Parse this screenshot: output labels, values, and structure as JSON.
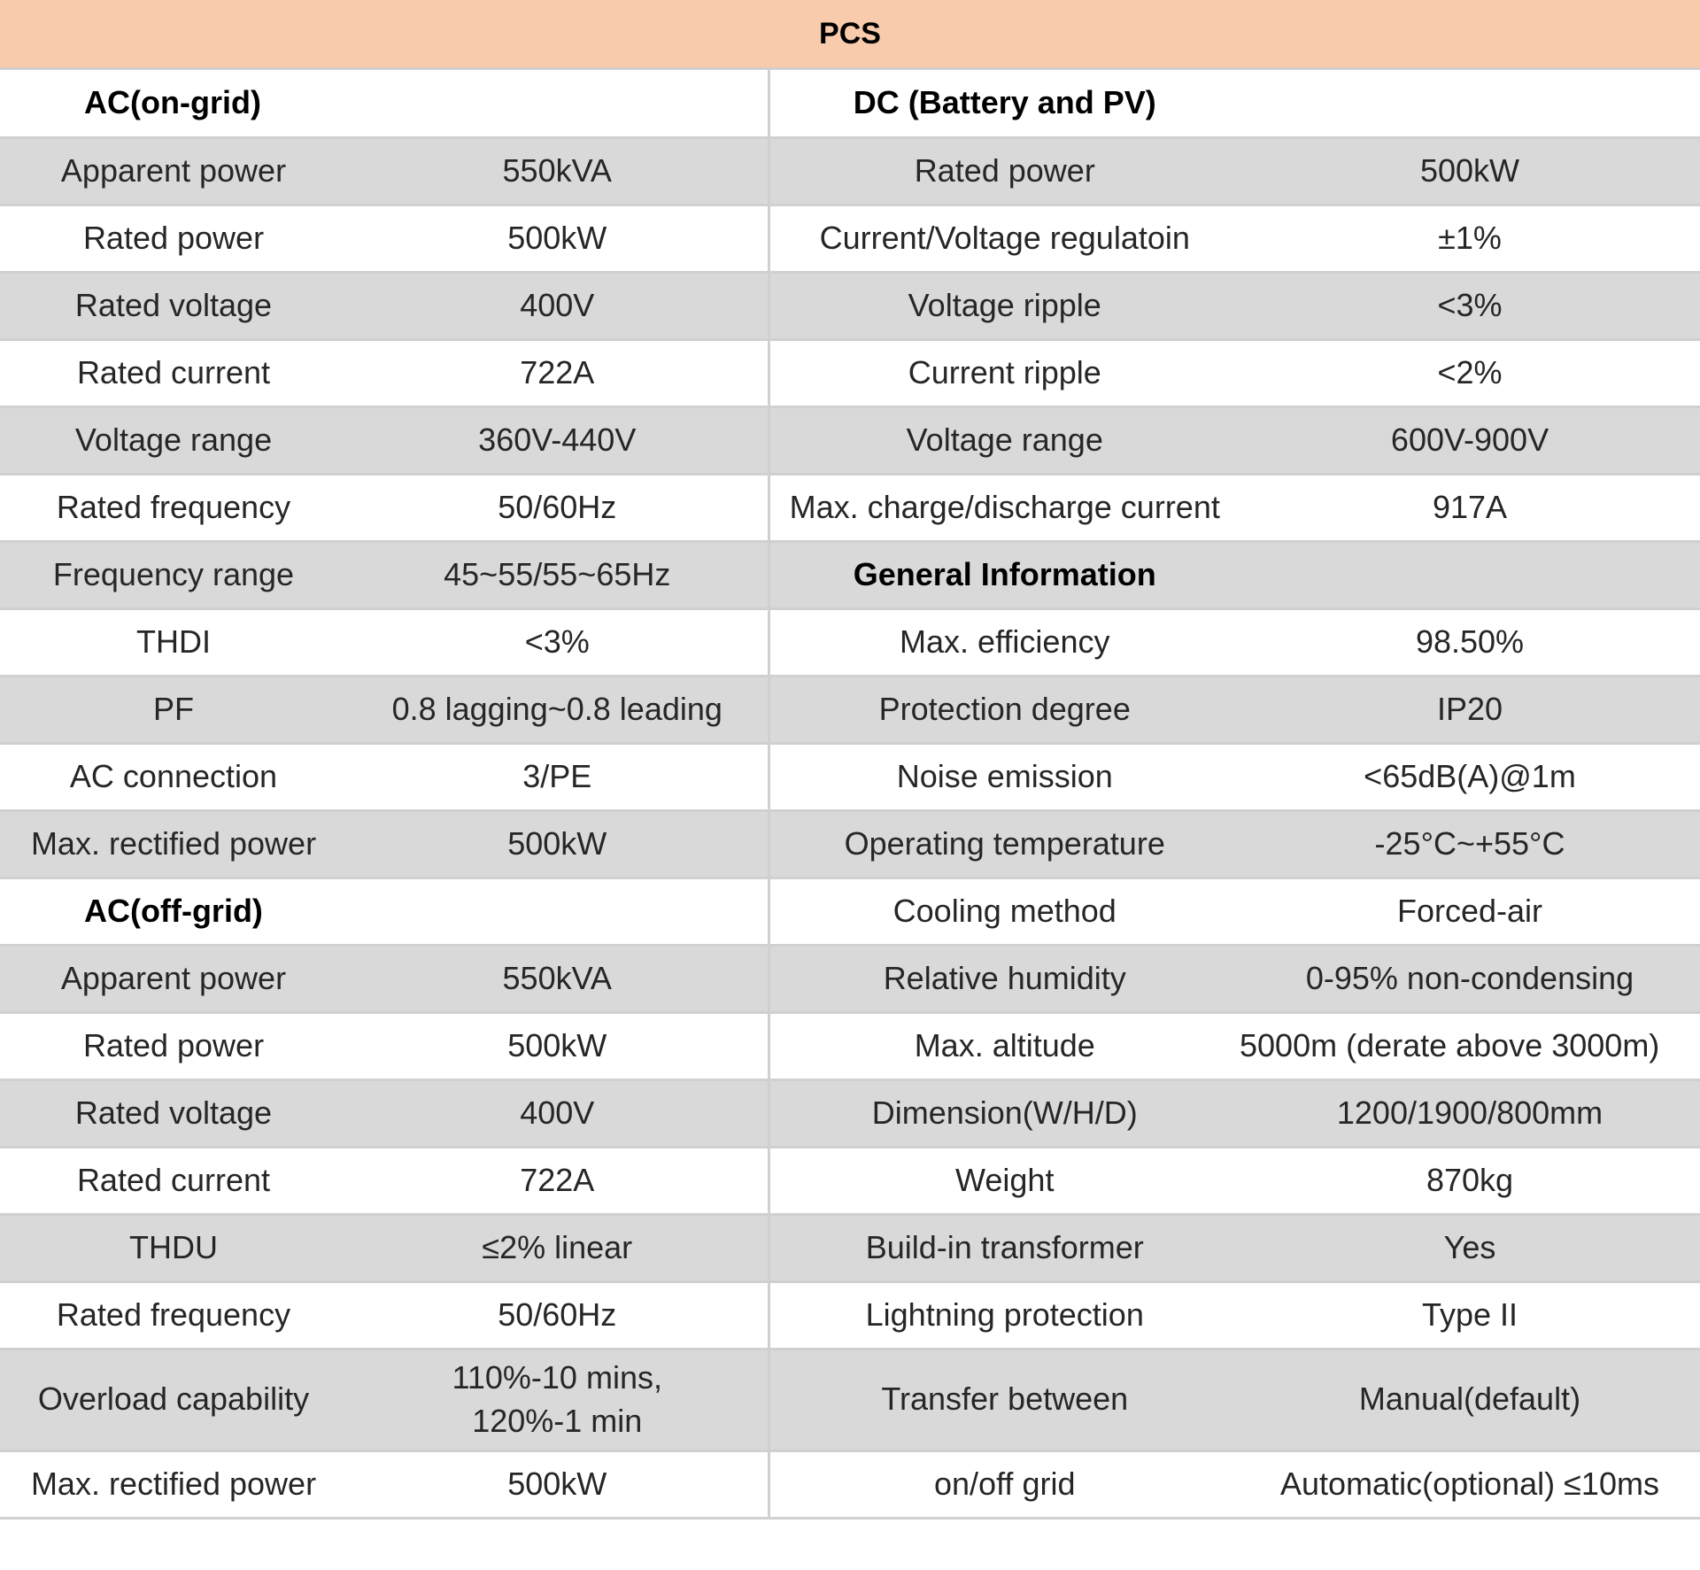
{
  "title": "PCS",
  "left": {
    "on_grid_heading": "AC(on-grid)",
    "on_grid_rows": [
      {
        "label": "Apparent power",
        "value": "550kVA"
      },
      {
        "label": "Rated power",
        "value": "500kW"
      },
      {
        "label": "Rated voltage",
        "value": "400V"
      },
      {
        "label": "Rated current",
        "value": "722A"
      },
      {
        "label": "Voltage range",
        "value": "360V-440V"
      },
      {
        "label": "Rated frequency",
        "value": "50/60Hz"
      },
      {
        "label": "Frequency range",
        "value": "45~55/55~65Hz"
      },
      {
        "label": "THDI",
        "value": "<3%"
      },
      {
        "label": "PF",
        "value": "0.8 lagging~0.8 leading"
      },
      {
        "label": "AC connection",
        "value": "3/PE"
      },
      {
        "label": "Max. rectified power",
        "value": "500kW"
      }
    ],
    "off_grid_heading": "AC(off-grid)",
    "off_grid_rows": [
      {
        "label": "Apparent power",
        "value": "550kVA"
      },
      {
        "label": "Rated power",
        "value": "500kW"
      },
      {
        "label": "Rated voltage",
        "value": "400V"
      },
      {
        "label": "Rated current",
        "value": "722A"
      },
      {
        "label": "THDU",
        "value": "≤2% linear"
      },
      {
        "label": "Rated frequency",
        "value": "50/60Hz"
      },
      {
        "label": "Overload capability",
        "value_line1": "110%-10 mins,",
        "value_line2": "120%-1 min"
      },
      {
        "label": "Max. rectified power",
        "value": "500kW"
      }
    ]
  },
  "right": {
    "dc_heading": "DC (Battery and PV)",
    "dc_rows": [
      {
        "label": "Rated power",
        "value": "500kW"
      },
      {
        "label": "Current/Voltage regulatoin",
        "value": "±1%"
      },
      {
        "label": "Voltage ripple",
        "value": "<3%"
      },
      {
        "label": "Current ripple",
        "value": "<2%"
      },
      {
        "label": "Voltage range",
        "value": "600V-900V"
      },
      {
        "label": "Max. charge/discharge current",
        "value": "917A"
      }
    ],
    "general_heading": "General Information",
    "general_rows": [
      {
        "label": "Max. efficiency",
        "value": "98.50%"
      },
      {
        "label": "Protection degree",
        "value": "IP20"
      },
      {
        "label": "Noise emission",
        "value": "<65dB(A)@1m"
      },
      {
        "label": "Operating temperature",
        "value": "-25°C~+55°C"
      },
      {
        "label": "Cooling method",
        "value": "Forced-air"
      },
      {
        "label": "Relative humidity",
        "value": "0-95% non-condensing"
      },
      {
        "label": "Max. altitude",
        "value": "5000m (derate above 3000m)"
      },
      {
        "label": "Dimension(W/H/D)",
        "value": "1200/1900/800mm"
      },
      {
        "label": "Weight",
        "value": "870kg"
      },
      {
        "label": "Build-in transformer",
        "value": "Yes"
      },
      {
        "label": "Lightning protection",
        "value": "Type II"
      },
      {
        "label": "Transfer between",
        "value": "Manual(default)"
      },
      {
        "label": "on/off grid",
        "value": "Automatic(optional) ≤10ms"
      }
    ]
  }
}
